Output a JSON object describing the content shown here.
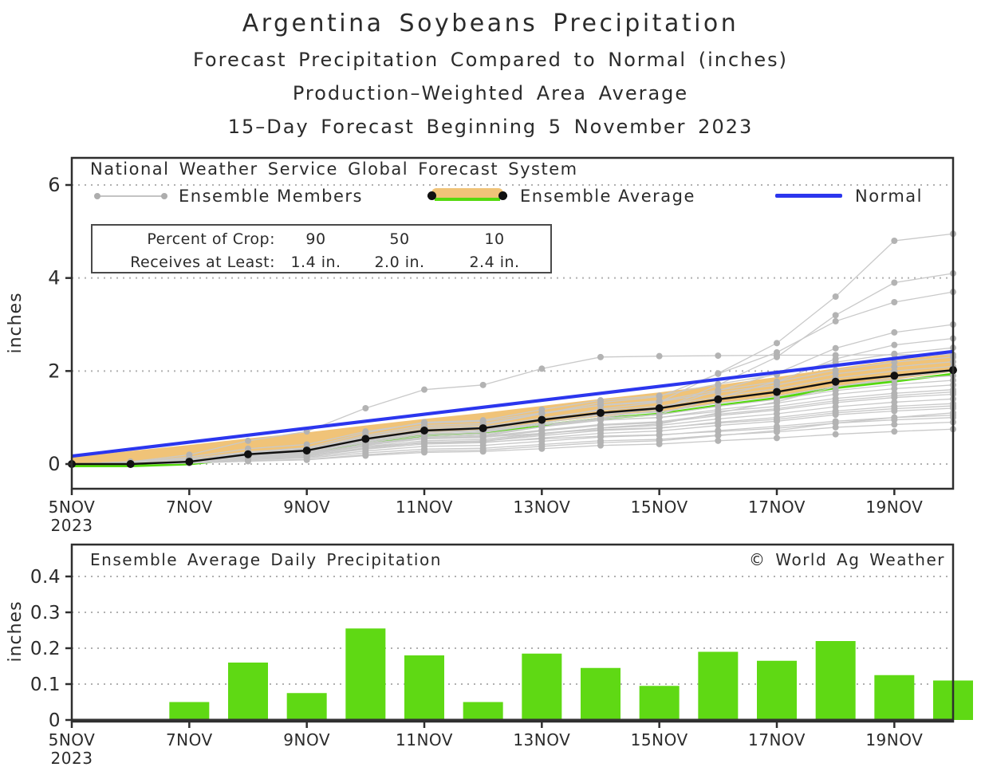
{
  "titles": {
    "line1": "Argentina Soybeans Precipitation",
    "line2": "Forecast Precipitation Compared to Normal (inches)",
    "line3": "Production–Weighted Area Average",
    "line4": "15–Day Forecast Beginning 5 November 2023"
  },
  "colors": {
    "text": "#2b2b2b",
    "frame": "#2e2e2e",
    "grid": "#b0b0b0",
    "member_line": "#c9c9c9",
    "member_dot": "#b3b3b3",
    "band_orange": "#f0c378",
    "band_green": "#55d90f",
    "average_black": "#111111",
    "normal_blue": "#2b36ee",
    "bar_green": "#5fd914",
    "zero_axis": "#333333"
  },
  "top_chart": {
    "legend_title": "National Weather Service Global Forecast System",
    "legend": [
      {
        "label": "Ensemble Members",
        "symbol": "gray-line-with-dots"
      },
      {
        "label": "Ensemble Average",
        "symbol": "orange-band-green-edge-black-line"
      },
      {
        "label": "Normal",
        "symbol": "blue-line"
      }
    ],
    "crop_table": {
      "row1": [
        "Percent of Crop:",
        "90",
        "50",
        "10"
      ],
      "row2": [
        "Receives at Least:",
        "1.4 in.",
        "2.0 in.",
        "2.4 in."
      ]
    },
    "ylabel": "inches"
  },
  "bottom_chart": {
    "title": "Ensemble Average Daily Precipitation",
    "watermark": "© World Ag Weather",
    "ylabel": "inches"
  },
  "chart_data": [
    {
      "type": "line",
      "title": "Forecast cumulative precipitation compared to normal (inches)",
      "x_days": [
        "5NOV",
        "6NOV",
        "7NOV",
        "8NOV",
        "9NOV",
        "10NOV",
        "11NOV",
        "12NOV",
        "13NOV",
        "14NOV",
        "15NOV",
        "16NOV",
        "17NOV",
        "18NOV",
        "19NOV",
        "20NOV"
      ],
      "xtick_indices": [
        0,
        2,
        4,
        6,
        8,
        10,
        12,
        14
      ],
      "xtick_labels": [
        "5NOV",
        "7NOV",
        "9NOV",
        "11NOV",
        "13NOV",
        "15NOV",
        "17NOV",
        "19NOV"
      ],
      "x_year": "2023",
      "ylabel": "inches",
      "yticks": [
        0,
        2,
        4,
        6
      ],
      "ylim": [
        -0.53,
        6.58
      ],
      "grid": "dotted",
      "series": [
        {
          "name": "Ensemble Average",
          "values": [
            0,
            0,
            0.05,
            0.21,
            0.29,
            0.54,
            0.72,
            0.77,
            0.95,
            1.1,
            1.2,
            1.39,
            1.55,
            1.77,
            1.9,
            2.02
          ]
        },
        {
          "name": "Normal",
          "values": [
            0.17,
            0.32,
            0.47,
            0.62,
            0.77,
            0.92,
            1.07,
            1.22,
            1.37,
            1.52,
            1.67,
            1.82,
            1.97,
            2.12,
            2.27,
            2.42
          ]
        },
        {
          "name": "Ensemble Band Top",
          "values": [
            0.15,
            0.28,
            0.41,
            0.55,
            0.68,
            0.83,
            0.97,
            1.1,
            1.25,
            1.4,
            1.54,
            1.7,
            1.87,
            2.06,
            2.23,
            2.38
          ]
        },
        {
          "name": "Ensemble Band Bottom",
          "values": [
            0,
            0,
            0.04,
            0.18,
            0.25,
            0.49,
            0.66,
            0.71,
            0.88,
            1.02,
            1.12,
            1.3,
            1.46,
            1.68,
            1.82,
            1.98
          ]
        }
      ],
      "ensemble_members": [
        [
          0,
          0,
          0.02,
          0.06,
          0.09,
          0.18,
          0.25,
          0.27,
          0.33,
          0.4,
          0.43,
          0.5,
          0.56,
          0.64,
          0.7,
          0.75
        ],
        [
          0,
          0,
          0.03,
          0.09,
          0.13,
          0.24,
          0.32,
          0.34,
          0.42,
          0.5,
          0.53,
          0.62,
          0.69,
          0.79,
          0.85,
          0.9
        ],
        [
          0,
          0.05,
          0.1,
          0.2,
          0.25,
          0.38,
          0.45,
          0.47,
          0.54,
          0.6,
          0.63,
          0.7,
          0.77,
          0.88,
          0.95,
          1.0
        ],
        [
          0,
          0,
          0.03,
          0.11,
          0.15,
          0.28,
          0.38,
          0.4,
          0.49,
          0.58,
          0.62,
          0.72,
          0.81,
          0.92,
          1.0,
          1.05
        ],
        [
          0,
          0,
          0.02,
          0.07,
          0.1,
          0.2,
          0.28,
          0.3,
          0.38,
          0.46,
          0.5,
          0.61,
          0.72,
          0.88,
          1.0,
          1.1
        ],
        [
          0,
          0,
          0.04,
          0.13,
          0.17,
          0.32,
          0.43,
          0.46,
          0.56,
          0.66,
          0.71,
          0.83,
          0.92,
          1.06,
          1.14,
          1.2
        ],
        [
          0,
          0.03,
          0.09,
          0.2,
          0.28,
          0.45,
          0.55,
          0.58,
          0.66,
          0.74,
          0.78,
          0.88,
          0.96,
          1.1,
          1.19,
          1.25
        ],
        [
          0,
          0,
          0.04,
          0.14,
          0.18,
          0.35,
          0.47,
          0.49,
          0.61,
          0.72,
          0.77,
          0.9,
          1.0,
          1.14,
          1.24,
          1.3
        ],
        [
          0,
          0,
          0.04,
          0.15,
          0.2,
          0.38,
          0.5,
          0.53,
          0.66,
          0.77,
          0.83,
          0.97,
          1.08,
          1.23,
          1.33,
          1.4
        ],
        [
          0,
          0,
          0.05,
          0.16,
          0.21,
          0.41,
          0.54,
          0.57,
          0.71,
          0.83,
          0.89,
          1.04,
          1.16,
          1.32,
          1.43,
          1.5
        ],
        [
          0,
          0,
          0.05,
          0.16,
          0.22,
          0.42,
          0.56,
          0.59,
          0.73,
          0.85,
          0.91,
          1.07,
          1.19,
          1.36,
          1.47,
          1.55
        ],
        [
          0,
          0.04,
          0.12,
          0.26,
          0.34,
          0.55,
          0.68,
          0.71,
          0.84,
          0.95,
          1.0,
          1.13,
          1.24,
          1.41,
          1.52,
          1.6
        ],
        [
          0,
          0,
          0.05,
          0.18,
          0.24,
          0.46,
          0.61,
          0.65,
          0.8,
          0.94,
          1.0,
          1.17,
          1.31,
          1.5,
          1.62,
          1.7
        ],
        [
          0,
          0,
          0.05,
          0.19,
          0.25,
          0.49,
          0.65,
          0.68,
          0.85,
          0.99,
          1.06,
          1.24,
          1.39,
          1.58,
          1.71,
          1.8
        ],
        [
          0,
          0,
          0.06,
          0.2,
          0.27,
          0.51,
          0.68,
          0.72,
          0.89,
          1.05,
          1.12,
          1.31,
          1.46,
          1.67,
          1.81,
          1.9
        ],
        [
          0,
          0,
          0.04,
          0.12,
          0.17,
          0.34,
          0.46,
          0.5,
          0.64,
          0.78,
          0.86,
          1.1,
          1.34,
          1.66,
          1.86,
          2.0
        ],
        [
          0,
          0,
          0.06,
          0.22,
          0.29,
          0.57,
          0.76,
          0.8,
          0.99,
          1.16,
          1.24,
          1.45,
          1.62,
          1.85,
          2.0,
          2.1
        ],
        [
          0,
          0.05,
          0.15,
          0.33,
          0.42,
          0.7,
          0.88,
          0.92,
          1.1,
          1.26,
          1.34,
          1.54,
          1.7,
          1.94,
          2.09,
          2.2
        ],
        [
          0,
          0,
          0.07,
          0.24,
          0.32,
          0.62,
          0.83,
          0.87,
          1.08,
          1.27,
          1.36,
          1.59,
          1.77,
          2.02,
          2.19,
          2.3
        ],
        [
          0,
          0.05,
          0.2,
          0.5,
          0.7,
          1.2,
          1.6,
          1.7,
          2.05,
          2.3,
          2.32,
          2.33,
          2.34,
          2.34,
          2.35,
          2.35
        ],
        [
          0,
          0,
          0.07,
          0.26,
          0.35,
          0.67,
          0.9,
          0.94,
          1.17,
          1.37,
          1.47,
          1.72,
          1.92,
          2.19,
          2.37,
          2.5
        ],
        [
          0,
          0,
          0.05,
          0.16,
          0.22,
          0.43,
          0.58,
          0.62,
          0.8,
          0.97,
          1.07,
          1.43,
          1.77,
          2.26,
          2.56,
          2.7
        ],
        [
          0,
          0,
          0.06,
          0.18,
          0.24,
          0.48,
          0.64,
          0.68,
          0.88,
          1.07,
          1.18,
          1.58,
          1.95,
          2.49,
          2.83,
          3.0
        ],
        [
          0,
          0,
          0.07,
          0.22,
          0.3,
          0.59,
          0.79,
          0.84,
          1.08,
          1.32,
          1.45,
          1.94,
          2.4,
          3.07,
          3.48,
          3.7
        ],
        [
          0,
          0,
          0.05,
          0.15,
          0.2,
          0.4,
          0.55,
          0.6,
          0.8,
          1.0,
          1.15,
          1.7,
          2.3,
          3.2,
          3.9,
          4.1
        ],
        [
          0,
          0,
          0.06,
          0.18,
          0.25,
          0.5,
          0.68,
          0.73,
          0.95,
          1.18,
          1.33,
          1.95,
          2.6,
          3.6,
          4.8,
          4.95
        ]
      ]
    },
    {
      "type": "bar",
      "title": "Ensemble Average Daily Precipitation",
      "categories": [
        "5NOV",
        "6NOV",
        "7NOV",
        "8NOV",
        "9NOV",
        "10NOV",
        "11NOV",
        "12NOV",
        "13NOV",
        "14NOV",
        "15NOV",
        "16NOV",
        "17NOV",
        "18NOV",
        "19NOV",
        "20NOV"
      ],
      "values": [
        0,
        0,
        0.05,
        0.16,
        0.075,
        0.255,
        0.18,
        0.05,
        0.185,
        0.145,
        0.095,
        0.19,
        0.165,
        0.22,
        0.125,
        0.11
      ],
      "xtick_indices": [
        0,
        2,
        4,
        6,
        8,
        10,
        12,
        14
      ],
      "xtick_labels": [
        "5NOV",
        "7NOV",
        "9NOV",
        "11NOV",
        "13NOV",
        "15NOV",
        "17NOV",
        "19NOV"
      ],
      "x_year": "2023",
      "ylabel": "inches",
      "yticks": [
        0,
        0.1,
        0.2,
        0.3,
        0.4
      ],
      "ylim": [
        0,
        0.49
      ],
      "grid": "dotted"
    }
  ]
}
